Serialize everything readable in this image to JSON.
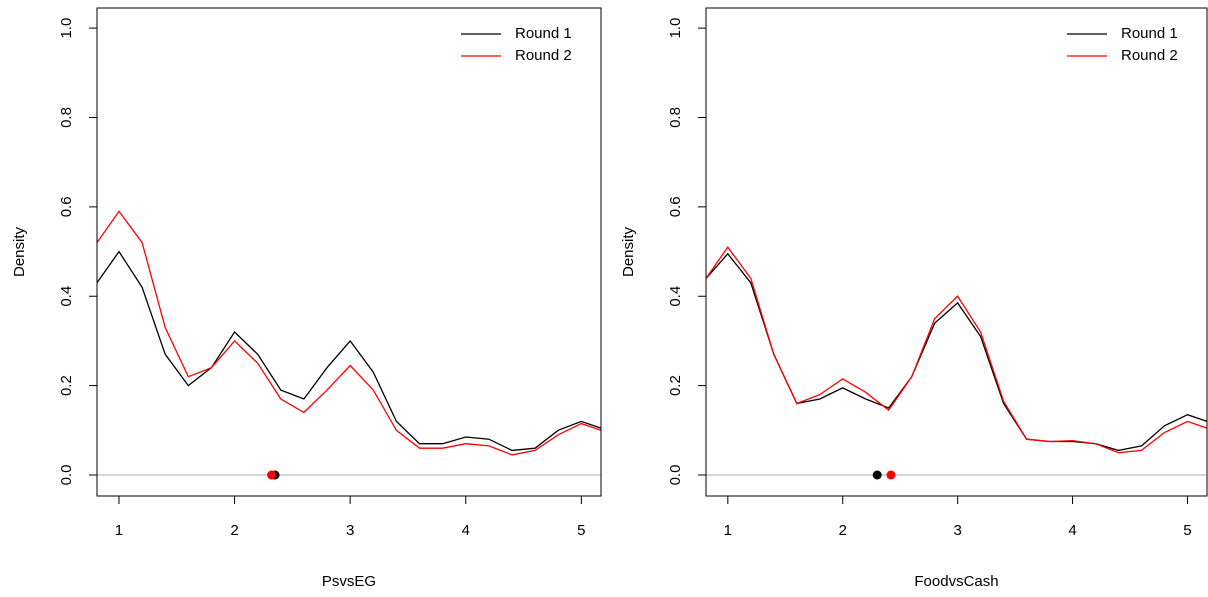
{
  "chart_data": [
    {
      "type": "line",
      "x_label": "PsvsEG",
      "y_label": "Density",
      "x": [
        0.81,
        1.0,
        1.2,
        1.4,
        1.6,
        1.8,
        2.0,
        2.2,
        2.4,
        2.6,
        2.8,
        3.0,
        3.2,
        3.4,
        3.6,
        3.8,
        4.0,
        4.2,
        4.4,
        4.6,
        4.8,
        5.0,
        5.17
      ],
      "series": [
        {
          "name": "Round 1",
          "color": "#000000",
          "values": [
            0.43,
            0.5,
            0.42,
            0.27,
            0.2,
            0.24,
            0.32,
            0.27,
            0.19,
            0.17,
            0.24,
            0.3,
            0.23,
            0.12,
            0.07,
            0.07,
            0.085,
            0.08,
            0.055,
            0.06,
            0.1,
            0.12,
            0.105
          ],
          "mean": 2.35
        },
        {
          "name": "Round 2",
          "color": "#ff0000",
          "values": [
            0.52,
            0.59,
            0.52,
            0.33,
            0.22,
            0.24,
            0.3,
            0.25,
            0.17,
            0.14,
            0.19,
            0.245,
            0.19,
            0.1,
            0.06,
            0.06,
            0.07,
            0.065,
            0.045,
            0.055,
            0.09,
            0.115,
            0.1
          ],
          "mean": 2.32
        }
      ],
      "xlim": [
        0.81,
        5.17
      ],
      "ylim": [
        -0.047,
        1.045
      ],
      "xticks": [
        1,
        2,
        3,
        4,
        5
      ],
      "yticks": [
        {
          "value": 0,
          "label": "0.0"
        },
        {
          "value": 0.2,
          "label": "0.2"
        },
        {
          "value": 0.4,
          "label": "0.4"
        },
        {
          "value": 0.6,
          "label": "0.6"
        },
        {
          "value": 0.8,
          "label": "0.8"
        },
        {
          "value": 1,
          "label": "1.0"
        }
      ],
      "reference_line": 0,
      "legend": "top-right"
    },
    {
      "type": "line",
      "x_label": "FoodvsCash",
      "y_label": "Density",
      "x": [
        0.81,
        1.0,
        1.2,
        1.4,
        1.6,
        1.8,
        2.0,
        2.2,
        2.4,
        2.6,
        2.8,
        3.0,
        3.2,
        3.4,
        3.6,
        3.8,
        4.0,
        4.2,
        4.4,
        4.6,
        4.8,
        5.0,
        5.17
      ],
      "series": [
        {
          "name": "Round 1",
          "color": "#000000",
          "values": [
            0.44,
            0.495,
            0.43,
            0.27,
            0.16,
            0.17,
            0.195,
            0.17,
            0.15,
            0.22,
            0.34,
            0.385,
            0.31,
            0.16,
            0.08,
            0.075,
            0.075,
            0.07,
            0.055,
            0.065,
            0.11,
            0.135,
            0.12
          ],
          "mean": 2.3
        },
        {
          "name": "Round 2",
          "color": "#ff0000",
          "values": [
            0.44,
            0.51,
            0.44,
            0.27,
            0.16,
            0.18,
            0.215,
            0.185,
            0.145,
            0.22,
            0.35,
            0.4,
            0.32,
            0.165,
            0.08,
            0.075,
            0.077,
            0.07,
            0.05,
            0.055,
            0.095,
            0.12,
            0.105
          ],
          "mean": 2.42
        }
      ],
      "xlim": [
        0.81,
        5.17
      ],
      "ylim": [
        -0.047,
        1.045
      ],
      "xticks": [
        1,
        2,
        3,
        4,
        5
      ],
      "yticks": [
        {
          "value": 0,
          "label": "0.0"
        },
        {
          "value": 0.2,
          "label": "0.2"
        },
        {
          "value": 0.4,
          "label": "0.4"
        },
        {
          "value": 0.6,
          "label": "0.6"
        },
        {
          "value": 0.8,
          "label": "0.8"
        },
        {
          "value": 1,
          "label": "1.0"
        }
      ],
      "reference_line": 0,
      "legend": "top-right"
    }
  ]
}
